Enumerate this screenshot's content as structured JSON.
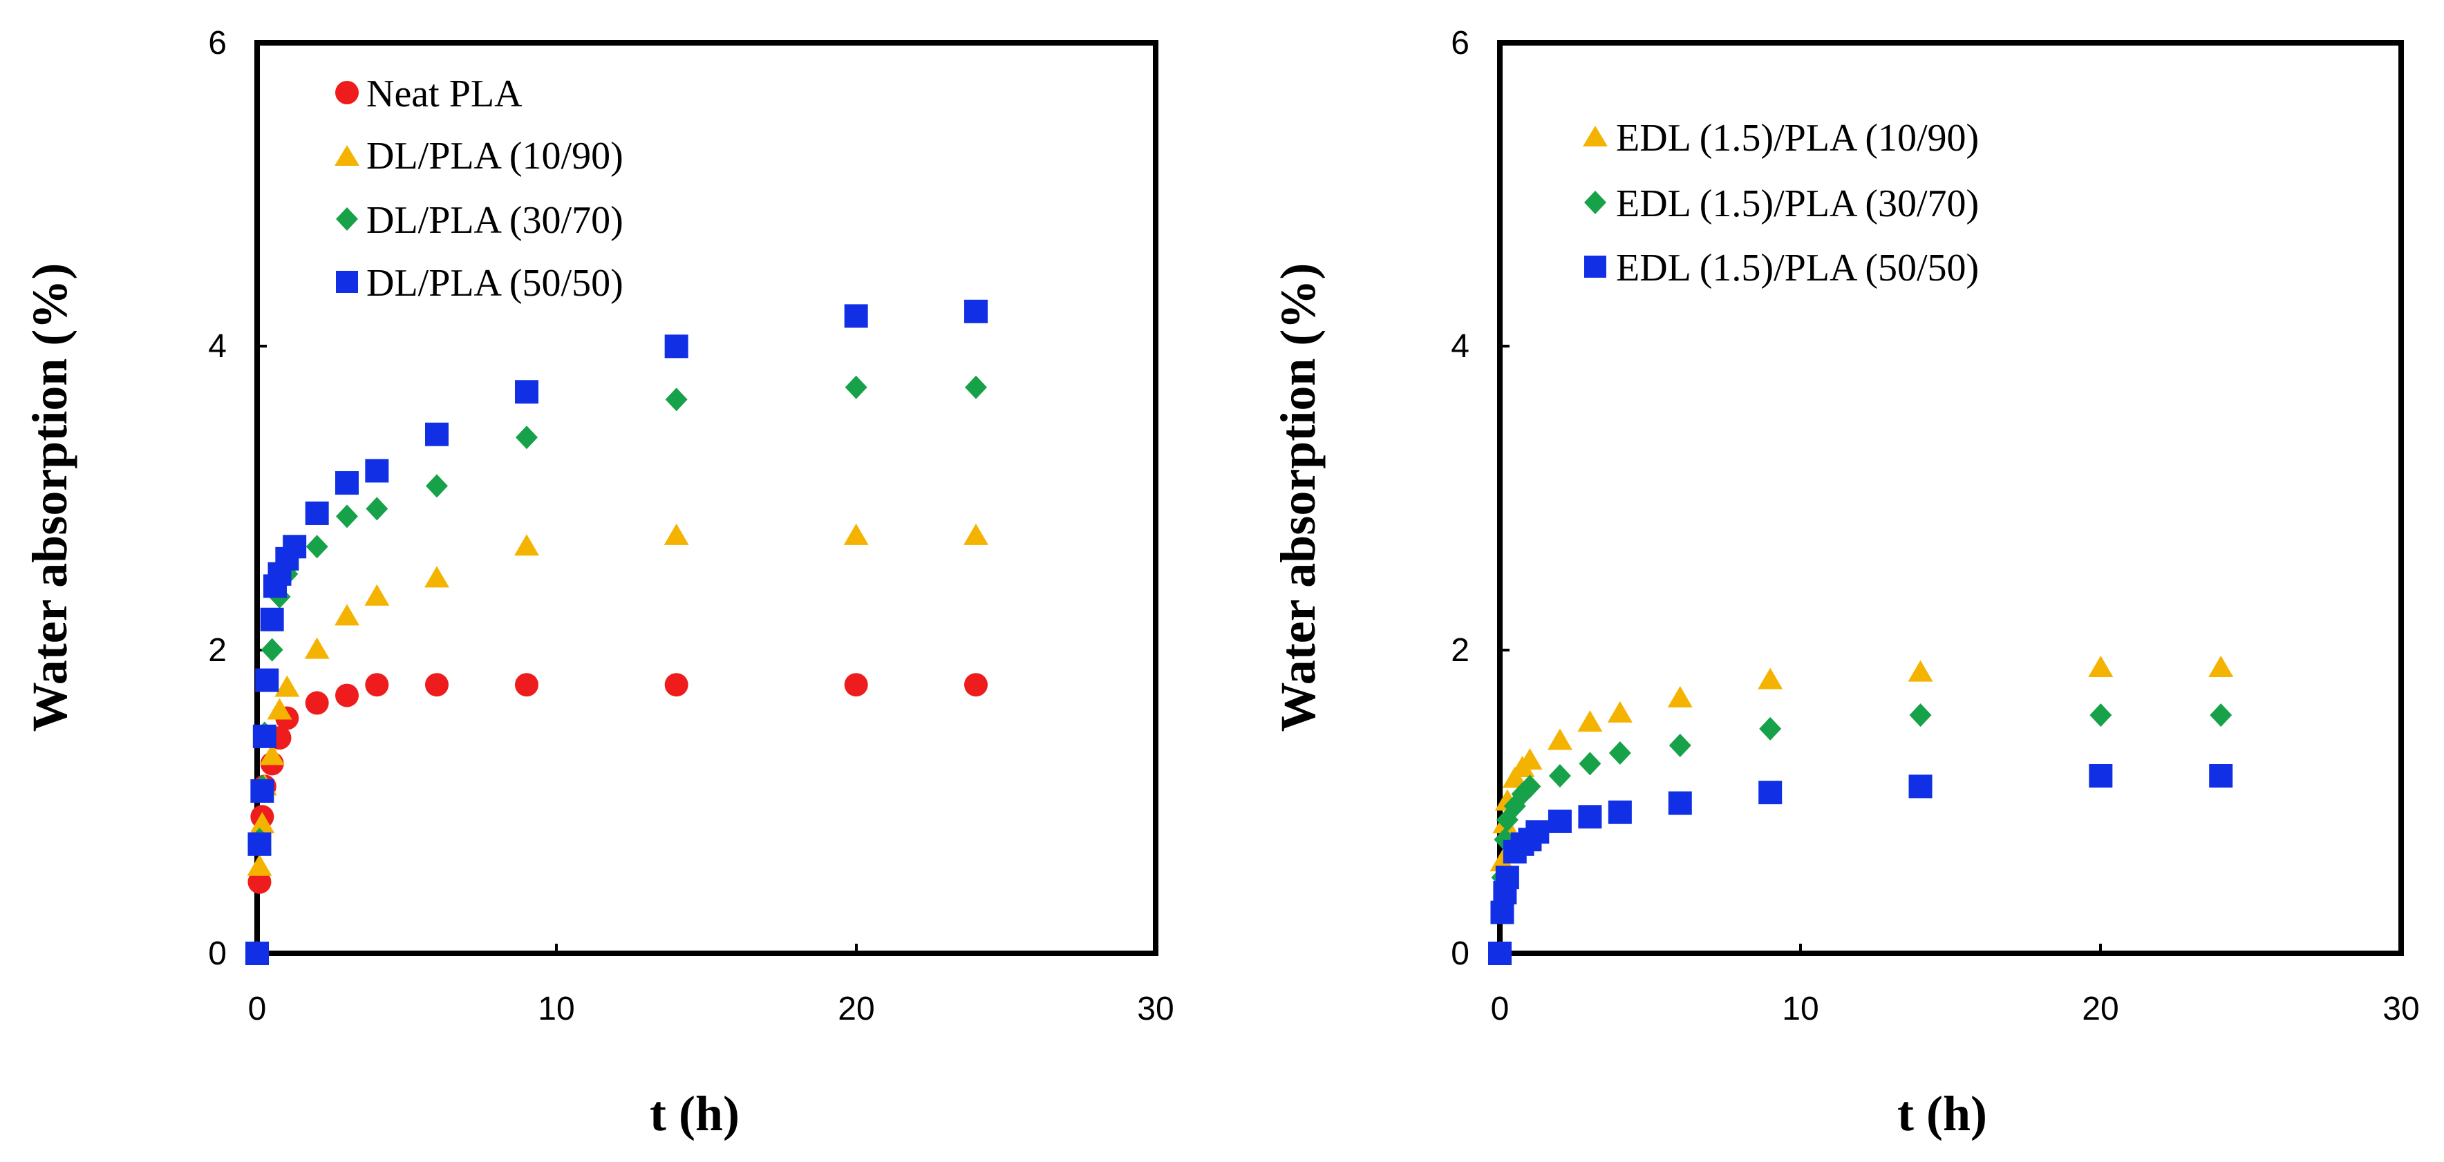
{
  "chart_data": [
    {
      "type": "scatter",
      "xlabel": "t (h)",
      "ylabel": "Water absorption (%)",
      "xlim": [
        0,
        30
      ],
      "ylim": [
        0,
        6
      ],
      "xticks": [
        0,
        10,
        20,
        30
      ],
      "yticks": [
        0,
        2,
        4,
        6
      ],
      "grid": false,
      "legend": "top-left",
      "series": [
        {
          "name": "Neat PLA",
          "marker": "circle",
          "color": "#ee1c1c",
          "points": [
            [
              0,
              0
            ],
            [
              0.08,
              0.47
            ],
            [
              0.17,
              0.9
            ],
            [
              0.25,
              1.1
            ],
            [
              0.5,
              1.25
            ],
            [
              0.75,
              1.42
            ],
            [
              1,
              1.55
            ],
            [
              2,
              1.65
            ],
            [
              3,
              1.7
            ],
            [
              4,
              1.77
            ],
            [
              6,
              1.77
            ],
            [
              9,
              1.77
            ],
            [
              14,
              1.77
            ],
            [
              20,
              1.77
            ],
            [
              24,
              1.77
            ]
          ]
        },
        {
          "name": "DL/PLA (10/90)",
          "marker": "triangle",
          "color": "#f5b301",
          "points": [
            [
              0,
              0
            ],
            [
              0.08,
              0.57
            ],
            [
              0.17,
              0.85
            ],
            [
              0.25,
              1.1
            ],
            [
              0.5,
              1.3
            ],
            [
              0.75,
              1.6
            ],
            [
              1,
              1.75
            ],
            [
              2,
              2.0
            ],
            [
              3,
              2.22
            ],
            [
              4,
              2.35
            ],
            [
              6,
              2.47
            ],
            [
              9,
              2.68
            ],
            [
              14,
              2.75
            ],
            [
              20,
              2.75
            ],
            [
              24,
              2.75
            ]
          ]
        },
        {
          "name": "DL/PLA (30/70)",
          "marker": "diamond",
          "color": "#17a24a",
          "points": [
            [
              0,
              0
            ],
            [
              0.08,
              0.75
            ],
            [
              0.17,
              1.1
            ],
            [
              0.25,
              1.45
            ],
            [
              0.5,
              2.0
            ],
            [
              0.75,
              2.35
            ],
            [
              1,
              2.5
            ],
            [
              2,
              2.68
            ],
            [
              3,
              2.88
            ],
            [
              4,
              2.93
            ],
            [
              6,
              3.08
            ],
            [
              9,
              3.4
            ],
            [
              14,
              3.65
            ],
            [
              20,
              3.73
            ],
            [
              24,
              3.73
            ]
          ]
        },
        {
          "name": "DL/PLA (50/50)",
          "marker": "square",
          "color": "#1130e6",
          "points": [
            [
              0,
              0
            ],
            [
              0.08,
              0.72
            ],
            [
              0.17,
              1.07
            ],
            [
              0.25,
              1.43
            ],
            [
              0.33,
              1.8
            ],
            [
              0.5,
              2.2
            ],
            [
              0.6,
              2.42
            ],
            [
              0.75,
              2.5
            ],
            [
              1,
              2.6
            ],
            [
              1.25,
              2.68
            ],
            [
              2,
              2.9
            ],
            [
              3,
              3.1
            ],
            [
              4,
              3.18
            ],
            [
              6,
              3.42
            ],
            [
              9,
              3.7
            ],
            [
              14,
              4.0
            ],
            [
              20,
              4.2
            ],
            [
              24,
              4.23
            ]
          ]
        }
      ]
    },
    {
      "type": "scatter",
      "xlabel": "t (h)",
      "ylabel": "Water absorption (%)",
      "xlim": [
        0,
        30
      ],
      "ylim": [
        0,
        6
      ],
      "xticks": [
        0,
        10,
        20,
        30
      ],
      "yticks": [
        0,
        2,
        4,
        6
      ],
      "grid": false,
      "legend": "top-left",
      "series": [
        {
          "name": "EDL (1.5)/PLA (10/90)",
          "marker": "triangle",
          "color": "#f5b301",
          "points": [
            [
              0,
              0
            ],
            [
              0.08,
              0.6
            ],
            [
              0.17,
              0.85
            ],
            [
              0.25,
              1.0
            ],
            [
              0.5,
              1.15
            ],
            [
              0.75,
              1.22
            ],
            [
              1,
              1.27
            ],
            [
              2,
              1.4
            ],
            [
              3,
              1.52
            ],
            [
              4,
              1.58
            ],
            [
              6,
              1.68
            ],
            [
              9,
              1.8
            ],
            [
              14,
              1.85
            ],
            [
              20,
              1.88
            ],
            [
              24,
              1.88
            ]
          ]
        },
        {
          "name": "EDL (1.5)/PLA (30/70)",
          "marker": "diamond",
          "color": "#17a24a",
          "points": [
            [
              0,
              0
            ],
            [
              0.08,
              0.5
            ],
            [
              0.17,
              0.75
            ],
            [
              0.25,
              0.88
            ],
            [
              0.5,
              0.97
            ],
            [
              0.75,
              1.05
            ],
            [
              1,
              1.1
            ],
            [
              2,
              1.17
            ],
            [
              3,
              1.25
            ],
            [
              4,
              1.32
            ],
            [
              6,
              1.37
            ],
            [
              9,
              1.48
            ],
            [
              14,
              1.57
            ],
            [
              20,
              1.57
            ],
            [
              24,
              1.57
            ]
          ]
        },
        {
          "name": "EDL (1.5)/PLA (50/50)",
          "marker": "square",
          "color": "#1130e6",
          "points": [
            [
              0,
              0
            ],
            [
              0.08,
              0.27
            ],
            [
              0.17,
              0.4
            ],
            [
              0.25,
              0.5
            ],
            [
              0.5,
              0.67
            ],
            [
              0.75,
              0.72
            ],
            [
              1,
              0.75
            ],
            [
              1.25,
              0.8
            ],
            [
              2,
              0.87
            ],
            [
              3,
              0.9
            ],
            [
              4,
              0.93
            ],
            [
              6,
              0.99
            ],
            [
              9,
              1.06
            ],
            [
              14,
              1.1
            ],
            [
              20,
              1.17
            ],
            [
              24,
              1.17
            ]
          ]
        }
      ]
    }
  ]
}
